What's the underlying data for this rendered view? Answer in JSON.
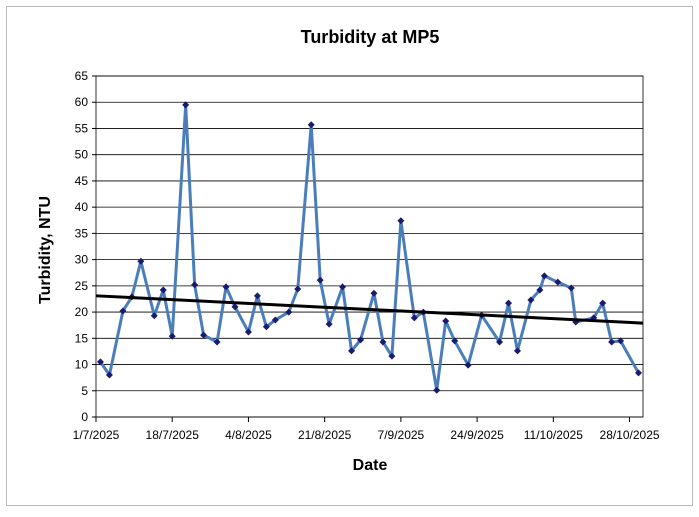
{
  "chart_data": {
    "type": "line",
    "title": "Turbidity at MP5",
    "x_label": "Date",
    "y_label": "Turbidity,  NTU",
    "x": [
      "2/7/2025",
      "4/7/2025",
      "7/7/2025",
      "9/7/2025",
      "11/7/2025",
      "14/7/2025",
      "16/7/2025",
      "18/7/2025",
      "21/7/2025",
      "23/7/2025",
      "25/7/2025",
      "28/7/2025",
      "30/7/2025",
      "1/8/2025",
      "4/8/2025",
      "6/8/2025",
      "8/8/2025",
      "10/8/2025",
      "13/8/2025",
      "15/8/2025",
      "18/8/2025",
      "20/8/2025",
      "22/8/2025",
      "25/8/2025",
      "27/8/2025",
      "29/8/2025",
      "1/9/2025",
      "3/9/2025",
      "5/9/2025",
      "7/9/2025",
      "10/9/2025",
      "12/9/2025",
      "15/9/2025",
      "17/9/2025",
      "19/9/2025",
      "22/9/2025",
      "25/9/2025",
      "29/9/2025",
      "1/10/2025",
      "3/10/2025",
      "6/10/2025",
      "8/10/2025",
      "9/10/2025",
      "12/10/2025",
      "15/10/2025",
      "16/10/2025",
      "20/10/2025",
      "22/10/2025",
      "24/10/2025",
      "26/10/2025",
      "30/10/2025"
    ],
    "series": [
      {
        "color": "#4a7ebb",
        "marker_color": "#1a1a6e",
        "values": [
          10.5,
          8.0,
          20.2,
          22.9,
          29.7,
          19.3,
          24.2,
          15.4,
          59.5,
          25.2,
          15.6,
          14.3,
          24.8,
          21.0,
          16.2,
          23.1,
          17.2,
          18.5,
          20.0,
          24.4,
          55.7,
          26.1,
          17.7,
          24.8,
          12.6,
          14.7,
          23.6,
          14.3,
          11.6,
          37.4,
          18.9,
          20.0,
          5.1,
          18.3,
          14.5,
          9.9,
          19.4,
          14.3,
          21.7,
          12.6,
          22.3,
          24.2,
          26.9,
          25.7,
          24.6,
          18.1,
          18.9,
          21.7,
          14.3,
          14.5,
          8.4
        ]
      }
    ],
    "trendline": {
      "x": [
        "1/7/2025",
        "31/10/2025"
      ],
      "values": [
        23.1,
        17.9
      ],
      "color": "#000000"
    },
    "xlim": [
      "1/7/2025",
      "31/10/2025"
    ],
    "xticks": [
      "1/7/2025",
      "18/7/2025",
      "4/8/2025",
      "21/8/2025",
      "7/9/2025",
      "24/9/2025",
      "11/10/2025",
      "28/10/2025"
    ],
    "ylim": [
      0,
      65
    ],
    "yticks": [
      0,
      5,
      10,
      15,
      20,
      25,
      30,
      35,
      40,
      45,
      50,
      55,
      60,
      65
    ],
    "grid": true
  }
}
